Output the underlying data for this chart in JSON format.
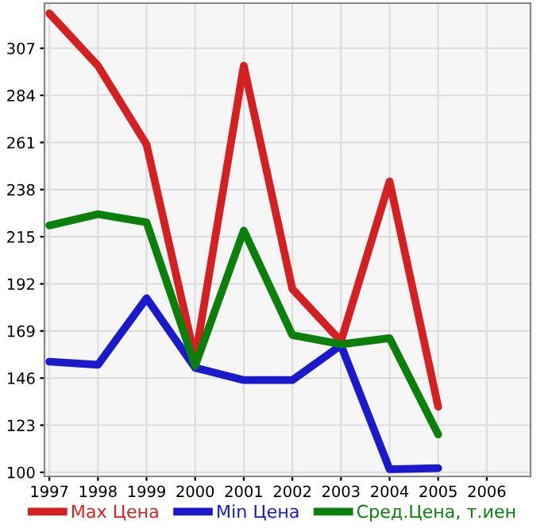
{
  "chart_data": {
    "type": "line",
    "x": [
      1997,
      1998,
      1999,
      2000,
      2001,
      2002,
      2003,
      2004,
      2005
    ],
    "series": [
      {
        "name": "Max Цена",
        "color": "#d42020",
        "values": [
          324,
          298.5,
          260,
          155.5,
          298.5,
          189.5,
          164,
          242,
          132
        ]
      },
      {
        "name": "Min Цена",
        "color": "#1a1acc",
        "values": [
          154,
          152.5,
          185,
          151,
          145,
          145,
          162,
          101.5,
          102
        ]
      },
      {
        "name": "Сред.Цена, т.иен",
        "color": "#0a800a",
        "values": [
          220.5,
          226,
          222,
          152,
          218,
          167,
          162.5,
          165.5,
          118.5
        ]
      }
    ],
    "xlim": [
      1996.9,
      2006.9
    ],
    "xticks": [
      1997,
      1998,
      1999,
      2000,
      2001,
      2002,
      2003,
      2004,
      2005,
      2006
    ],
    "ylim": [
      98,
      329
    ],
    "yticks": [
      100,
      123,
      146,
      169,
      192,
      215,
      238,
      261,
      284,
      307
    ],
    "grid": true,
    "legend": "bottom",
    "marker": "none",
    "line_style": "solid"
  }
}
